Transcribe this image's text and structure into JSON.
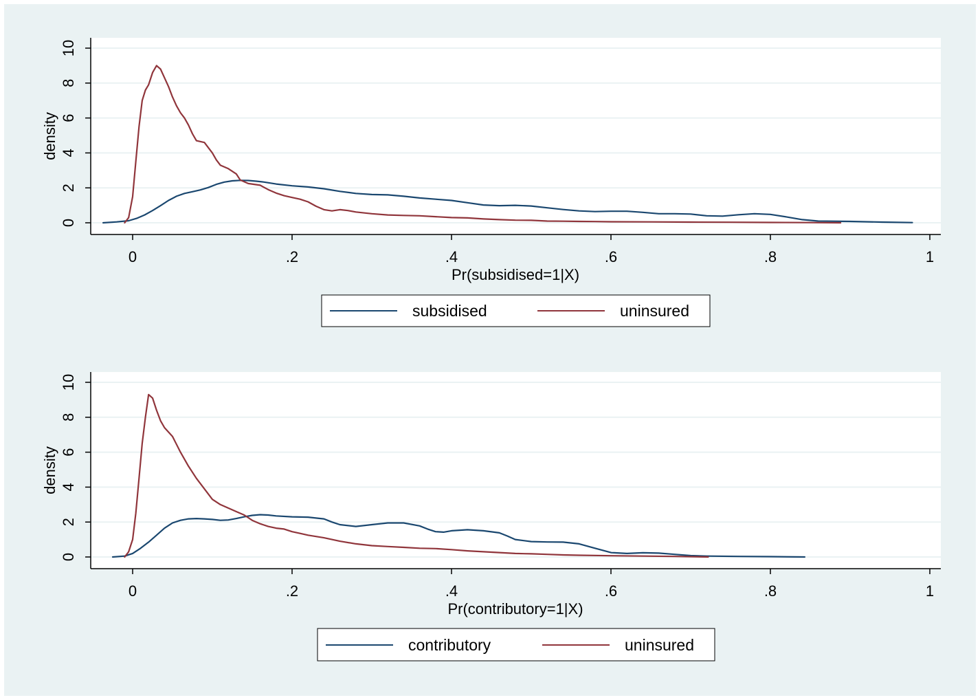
{
  "colors": {
    "background": "#eaf2f3",
    "plot_area": "#ffffff",
    "grid": "#eaf2f3",
    "series_blue": "#1a476f",
    "series_red": "#90353b"
  },
  "chart_data": [
    {
      "type": "line",
      "xlabel": "Pr(subsidised=1|X)",
      "ylabel": "density",
      "xlim": [
        0,
        1
      ],
      "ylim": [
        0,
        10
      ],
      "x_ticks": [
        "0",
        ".2",
        ".4",
        ".6",
        ".8",
        "1"
      ],
      "x_tick_values": [
        0,
        0.2,
        0.4,
        0.6,
        0.8,
        1
      ],
      "y_ticks": [
        "0",
        "2",
        "4",
        "6",
        "8",
        "10"
      ],
      "y_tick_values": [
        0,
        2,
        4,
        6,
        8,
        10
      ],
      "grid": true,
      "legend": "bottom",
      "series": [
        {
          "name": "subsidised",
          "color": "#1a476f",
          "points": [
            [
              -0.037,
              0
            ],
            [
              -0.02,
              0.05
            ],
            [
              -0.005,
              0.12
            ],
            [
              0.005,
              0.25
            ],
            [
              0.015,
              0.45
            ],
            [
              0.025,
              0.7
            ],
            [
              0.035,
              0.98
            ],
            [
              0.045,
              1.28
            ],
            [
              0.055,
              1.52
            ],
            [
              0.065,
              1.68
            ],
            [
              0.075,
              1.78
            ],
            [
              0.085,
              1.88
            ],
            [
              0.095,
              2.02
            ],
            [
              0.105,
              2.2
            ],
            [
              0.115,
              2.33
            ],
            [
              0.125,
              2.4
            ],
            [
              0.135,
              2.43
            ],
            [
              0.145,
              2.42
            ],
            [
              0.155,
              2.38
            ],
            [
              0.165,
              2.33
            ],
            [
              0.18,
              2.22
            ],
            [
              0.2,
              2.12
            ],
            [
              0.22,
              2.05
            ],
            [
              0.24,
              1.95
            ],
            [
              0.26,
              1.8
            ],
            [
              0.28,
              1.68
            ],
            [
              0.3,
              1.62
            ],
            [
              0.32,
              1.6
            ],
            [
              0.34,
              1.52
            ],
            [
              0.36,
              1.42
            ],
            [
              0.38,
              1.35
            ],
            [
              0.4,
              1.28
            ],
            [
              0.42,
              1.15
            ],
            [
              0.44,
              1.02
            ],
            [
              0.46,
              0.98
            ],
            [
              0.48,
              1.0
            ],
            [
              0.5,
              0.96
            ],
            [
              0.52,
              0.86
            ],
            [
              0.54,
              0.76
            ],
            [
              0.56,
              0.68
            ],
            [
              0.58,
              0.64
            ],
            [
              0.6,
              0.66
            ],
            [
              0.62,
              0.66
            ],
            [
              0.64,
              0.6
            ],
            [
              0.66,
              0.52
            ],
            [
              0.68,
              0.52
            ],
            [
              0.7,
              0.5
            ],
            [
              0.72,
              0.4
            ],
            [
              0.74,
              0.38
            ],
            [
              0.76,
              0.46
            ],
            [
              0.78,
              0.52
            ],
            [
              0.8,
              0.48
            ],
            [
              0.82,
              0.34
            ],
            [
              0.84,
              0.18
            ],
            [
              0.86,
              0.1
            ],
            [
              0.9,
              0.08
            ],
            [
              0.94,
              0.04
            ],
            [
              0.978,
              0.01
            ]
          ]
        },
        {
          "name": "uninsured",
          "color": "#90353b",
          "points": [
            [
              -0.01,
              0
            ],
            [
              -0.005,
              0.3
            ],
            [
              0.0,
              1.5
            ],
            [
              0.004,
              3.5
            ],
            [
              0.008,
              5.5
            ],
            [
              0.012,
              7.0
            ],
            [
              0.016,
              7.6
            ],
            [
              0.02,
              7.9
            ],
            [
              0.025,
              8.6
            ],
            [
              0.03,
              9.0
            ],
            [
              0.035,
              8.8
            ],
            [
              0.04,
              8.3
            ],
            [
              0.045,
              7.8
            ],
            [
              0.05,
              7.2
            ],
            [
              0.055,
              6.7
            ],
            [
              0.06,
              6.3
            ],
            [
              0.065,
              6.0
            ],
            [
              0.07,
              5.6
            ],
            [
              0.075,
              5.1
            ],
            [
              0.08,
              4.7
            ],
            [
              0.09,
              4.6
            ],
            [
              0.1,
              4.0
            ],
            [
              0.105,
              3.6
            ],
            [
              0.11,
              3.3
            ],
            [
              0.12,
              3.1
            ],
            [
              0.13,
              2.8
            ],
            [
              0.135,
              2.45
            ],
            [
              0.145,
              2.25
            ],
            [
              0.16,
              2.15
            ],
            [
              0.17,
              1.9
            ],
            [
              0.18,
              1.7
            ],
            [
              0.19,
              1.55
            ],
            [
              0.2,
              1.45
            ],
            [
              0.21,
              1.35
            ],
            [
              0.22,
              1.2
            ],
            [
              0.23,
              0.95
            ],
            [
              0.24,
              0.75
            ],
            [
              0.25,
              0.68
            ],
            [
              0.26,
              0.75
            ],
            [
              0.27,
              0.7
            ],
            [
              0.28,
              0.62
            ],
            [
              0.3,
              0.52
            ],
            [
              0.32,
              0.45
            ],
            [
              0.34,
              0.42
            ],
            [
              0.36,
              0.4
            ],
            [
              0.38,
              0.35
            ],
            [
              0.4,
              0.3
            ],
            [
              0.42,
              0.28
            ],
            [
              0.44,
              0.22
            ],
            [
              0.46,
              0.18
            ],
            [
              0.48,
              0.15
            ],
            [
              0.5,
              0.14
            ],
            [
              0.52,
              0.1
            ],
            [
              0.54,
              0.09
            ],
            [
              0.56,
              0.08
            ],
            [
              0.58,
              0.07
            ],
            [
              0.6,
              0.06
            ],
            [
              0.65,
              0.05
            ],
            [
              0.7,
              0.04
            ],
            [
              0.75,
              0.03
            ],
            [
              0.8,
              0.02
            ],
            [
              0.85,
              0.01
            ],
            [
              0.888,
              0
            ]
          ]
        }
      ]
    },
    {
      "type": "line",
      "xlabel": "Pr(contributory=1|X)",
      "ylabel": "density",
      "xlim": [
        0,
        1
      ],
      "ylim": [
        0,
        10
      ],
      "x_ticks": [
        "0",
        ".2",
        ".4",
        ".6",
        ".8",
        "1"
      ],
      "x_tick_values": [
        0,
        0.2,
        0.4,
        0.6,
        0.8,
        1
      ],
      "y_ticks": [
        "0",
        "2",
        "4",
        "6",
        "8",
        "10"
      ],
      "y_tick_values": [
        0,
        2,
        4,
        6,
        8,
        10
      ],
      "grid": true,
      "legend": "bottom",
      "series": [
        {
          "name": "contributory",
          "color": "#1a476f",
          "points": [
            [
              -0.025,
              0
            ],
            [
              -0.01,
              0.05
            ],
            [
              0.0,
              0.2
            ],
            [
              0.01,
              0.5
            ],
            [
              0.02,
              0.85
            ],
            [
              0.03,
              1.25
            ],
            [
              0.04,
              1.65
            ],
            [
              0.05,
              1.95
            ],
            [
              0.06,
              2.1
            ],
            [
              0.07,
              2.18
            ],
            [
              0.08,
              2.2
            ],
            [
              0.09,
              2.18
            ],
            [
              0.1,
              2.15
            ],
            [
              0.11,
              2.1
            ],
            [
              0.12,
              2.12
            ],
            [
              0.13,
              2.2
            ],
            [
              0.14,
              2.3
            ],
            [
              0.15,
              2.38
            ],
            [
              0.16,
              2.42
            ],
            [
              0.17,
              2.4
            ],
            [
              0.18,
              2.35
            ],
            [
              0.2,
              2.3
            ],
            [
              0.22,
              2.28
            ],
            [
              0.24,
              2.18
            ],
            [
              0.25,
              2.0
            ],
            [
              0.26,
              1.85
            ],
            [
              0.28,
              1.75
            ],
            [
              0.3,
              1.85
            ],
            [
              0.32,
              1.95
            ],
            [
              0.34,
              1.95
            ],
            [
              0.36,
              1.78
            ],
            [
              0.37,
              1.6
            ],
            [
              0.38,
              1.45
            ],
            [
              0.39,
              1.42
            ],
            [
              0.4,
              1.5
            ],
            [
              0.42,
              1.56
            ],
            [
              0.44,
              1.5
            ],
            [
              0.46,
              1.38
            ],
            [
              0.47,
              1.2
            ],
            [
              0.48,
              1.0
            ],
            [
              0.5,
              0.88
            ],
            [
              0.52,
              0.86
            ],
            [
              0.54,
              0.85
            ],
            [
              0.56,
              0.75
            ],
            [
              0.58,
              0.5
            ],
            [
              0.6,
              0.25
            ],
            [
              0.62,
              0.2
            ],
            [
              0.64,
              0.24
            ],
            [
              0.66,
              0.22
            ],
            [
              0.68,
              0.15
            ],
            [
              0.7,
              0.08
            ],
            [
              0.72,
              0.05
            ],
            [
              0.76,
              0.03
            ],
            [
              0.8,
              0.02
            ],
            [
              0.843,
              0
            ]
          ]
        },
        {
          "name": "uninsured",
          "color": "#90353b",
          "points": [
            [
              -0.01,
              0
            ],
            [
              -0.005,
              0.3
            ],
            [
              0.0,
              1.0
            ],
            [
              0.004,
              2.5
            ],
            [
              0.008,
              4.5
            ],
            [
              0.012,
              6.5
            ],
            [
              0.016,
              8.0
            ],
            [
              0.02,
              9.3
            ],
            [
              0.025,
              9.1
            ],
            [
              0.03,
              8.4
            ],
            [
              0.035,
              7.8
            ],
            [
              0.04,
              7.4
            ],
            [
              0.05,
              6.9
            ],
            [
              0.06,
              6.0
            ],
            [
              0.07,
              5.2
            ],
            [
              0.08,
              4.5
            ],
            [
              0.09,
              3.9
            ],
            [
              0.1,
              3.3
            ],
            [
              0.11,
              3.0
            ],
            [
              0.12,
              2.8
            ],
            [
              0.13,
              2.6
            ],
            [
              0.14,
              2.4
            ],
            [
              0.15,
              2.1
            ],
            [
              0.16,
              1.9
            ],
            [
              0.17,
              1.75
            ],
            [
              0.18,
              1.65
            ],
            [
              0.19,
              1.6
            ],
            [
              0.2,
              1.45
            ],
            [
              0.21,
              1.35
            ],
            [
              0.22,
              1.25
            ],
            [
              0.24,
              1.1
            ],
            [
              0.26,
              0.9
            ],
            [
              0.28,
              0.75
            ],
            [
              0.3,
              0.65
            ],
            [
              0.32,
              0.6
            ],
            [
              0.34,
              0.55
            ],
            [
              0.36,
              0.5
            ],
            [
              0.38,
              0.48
            ],
            [
              0.4,
              0.42
            ],
            [
              0.42,
              0.35
            ],
            [
              0.44,
              0.3
            ],
            [
              0.46,
              0.25
            ],
            [
              0.48,
              0.2
            ],
            [
              0.5,
              0.18
            ],
            [
              0.52,
              0.15
            ],
            [
              0.54,
              0.12
            ],
            [
              0.56,
              0.1
            ],
            [
              0.6,
              0.07
            ],
            [
              0.64,
              0.05
            ],
            [
              0.68,
              0.03
            ],
            [
              0.722,
              0
            ]
          ]
        }
      ]
    }
  ]
}
